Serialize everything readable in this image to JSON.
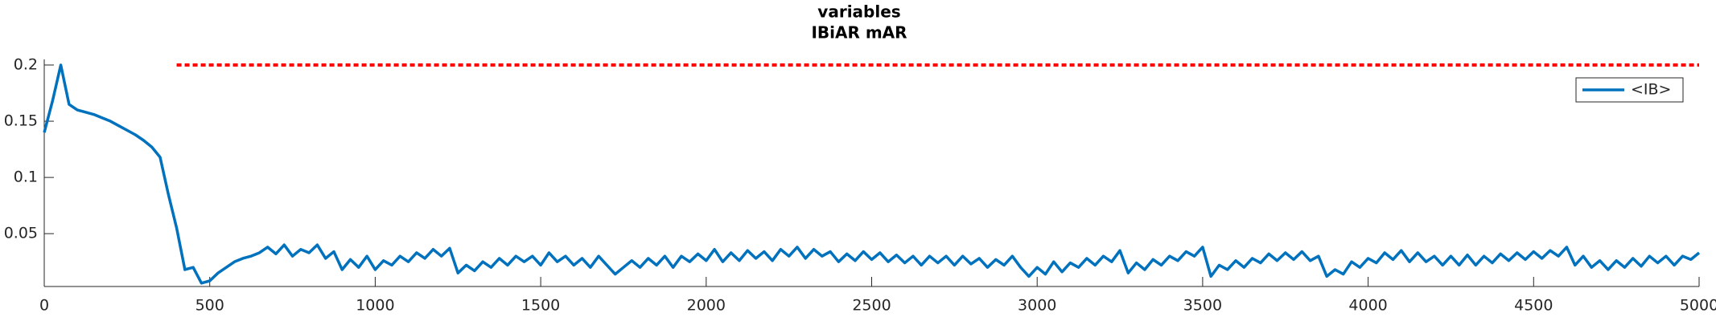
{
  "chart_data": {
    "type": "line",
    "title": "variables",
    "subtitle": "IBiAR mAR",
    "xlim": [
      0,
      5000
    ],
    "xticks": [
      0,
      500,
      1000,
      1500,
      2000,
      2500,
      3000,
      3500,
      4000,
      4500,
      5000
    ],
    "ylim": [
      0.003,
      0.205
    ],
    "yticks": [
      0.05,
      0.1,
      0.15,
      0.2
    ],
    "grid": false,
    "legend": "upper right",
    "series": [
      {
        "name": "<IB>",
        "color": "#0072bd",
        "legend": true,
        "x": [
          0,
          25,
          50,
          75,
          100,
          125,
          150,
          175,
          200,
          225,
          250,
          275,
          300,
          325,
          350,
          375,
          400,
          425,
          450,
          475,
          500,
          525,
          550,
          575,
          600,
          625,
          650,
          675,
          700,
          725,
          750,
          775,
          800,
          825,
          850,
          875,
          900,
          925,
          950,
          975,
          1000,
          1025,
          1050,
          1075,
          1100,
          1125,
          1150,
          1175,
          1200,
          1225,
          1250,
          1275,
          1300,
          1325,
          1350,
          1375,
          1400,
          1425,
          1450,
          1475,
          1500,
          1525,
          1550,
          1575,
          1600,
          1625,
          1650,
          1675,
          1700,
          1725,
          1750,
          1775,
          1800,
          1825,
          1850,
          1875,
          1900,
          1925,
          1950,
          1975,
          2000,
          2025,
          2050,
          2075,
          2100,
          2125,
          2150,
          2175,
          2200,
          2225,
          2250,
          2275,
          2300,
          2325,
          2350,
          2375,
          2400,
          2425,
          2450,
          2475,
          2500,
          2525,
          2550,
          2575,
          2600,
          2625,
          2650,
          2675,
          2700,
          2725,
          2750,
          2775,
          2800,
          2825,
          2850,
          2875,
          2900,
          2925,
          2950,
          2975,
          3000,
          3025,
          3050,
          3075,
          3100,
          3125,
          3150,
          3175,
          3200,
          3225,
          3250,
          3275,
          3300,
          3325,
          3350,
          3375,
          3400,
          3425,
          3450,
          3475,
          3500,
          3525,
          3550,
          3575,
          3600,
          3625,
          3650,
          3675,
          3700,
          3725,
          3750,
          3775,
          3800,
          3825,
          3850,
          3875,
          3900,
          3925,
          3950,
          3975,
          4000,
          4025,
          4050,
          4075,
          4100,
          4125,
          4150,
          4175,
          4200,
          4225,
          4250,
          4275,
          4300,
          4325,
          4350,
          4375,
          4400,
          4425,
          4450,
          4475,
          4500,
          4525,
          4550,
          4575,
          4600,
          4625,
          4650,
          4675,
          4700,
          4725,
          4750,
          4775,
          4800,
          4825,
          4850,
          4875,
          4900,
          4925,
          4950,
          4975,
          5000
        ],
        "values": [
          0.14,
          0.168,
          0.2,
          0.165,
          0.16,
          0.158,
          0.156,
          0.153,
          0.15,
          0.146,
          0.142,
          0.138,
          0.133,
          0.127,
          0.118,
          0.085,
          0.055,
          0.018,
          0.02,
          0.006,
          0.008,
          0.015,
          0.02,
          0.025,
          0.028,
          0.03,
          0.033,
          0.038,
          0.032,
          0.04,
          0.03,
          0.036,
          0.033,
          0.04,
          0.028,
          0.034,
          0.018,
          0.027,
          0.02,
          0.03,
          0.018,
          0.026,
          0.022,
          0.03,
          0.025,
          0.033,
          0.028,
          0.036,
          0.03,
          0.037,
          0.015,
          0.022,
          0.017,
          0.025,
          0.02,
          0.028,
          0.022,
          0.03,
          0.025,
          0.03,
          0.022,
          0.033,
          0.025,
          0.03,
          0.022,
          0.028,
          0.02,
          0.03,
          0.022,
          0.014,
          0.02,
          0.026,
          0.02,
          0.028,
          0.022,
          0.03,
          0.02,
          0.03,
          0.025,
          0.032,
          0.026,
          0.036,
          0.025,
          0.033,
          0.026,
          0.035,
          0.028,
          0.034,
          0.026,
          0.036,
          0.03,
          0.038,
          0.028,
          0.036,
          0.03,
          0.034,
          0.025,
          0.032,
          0.026,
          0.034,
          0.027,
          0.033,
          0.025,
          0.031,
          0.024,
          0.03,
          0.022,
          0.03,
          0.024,
          0.03,
          0.022,
          0.03,
          0.023,
          0.028,
          0.02,
          0.027,
          0.022,
          0.03,
          0.02,
          0.012,
          0.02,
          0.014,
          0.025,
          0.016,
          0.024,
          0.02,
          0.028,
          0.022,
          0.03,
          0.025,
          0.035,
          0.015,
          0.024,
          0.018,
          0.027,
          0.022,
          0.03,
          0.026,
          0.034,
          0.03,
          0.038,
          0.012,
          0.022,
          0.018,
          0.026,
          0.02,
          0.028,
          0.024,
          0.032,
          0.026,
          0.033,
          0.027,
          0.034,
          0.026,
          0.03,
          0.012,
          0.018,
          0.014,
          0.025,
          0.02,
          0.028,
          0.024,
          0.033,
          0.027,
          0.035,
          0.025,
          0.033,
          0.025,
          0.03,
          0.022,
          0.03,
          0.022,
          0.031,
          0.022,
          0.03,
          0.024,
          0.032,
          0.026,
          0.033,
          0.027,
          0.034,
          0.028,
          0.035,
          0.03,
          0.038,
          0.022,
          0.03,
          0.02,
          0.026,
          0.018,
          0.026,
          0.02,
          0.028,
          0.021,
          0.03,
          0.024,
          0.03,
          0.022,
          0.03,
          0.027,
          0.033
        ]
      },
      {
        "color": "#ff0000",
        "dash": true,
        "legend": false,
        "x": [
          400,
          5000
        ],
        "values": [
          0.2,
          0.2
        ]
      }
    ]
  }
}
